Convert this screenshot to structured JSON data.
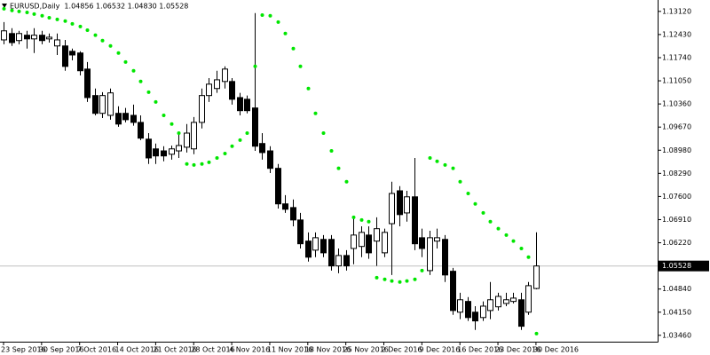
{
  "chart_data": {
    "type": "candlestick",
    "title": "EURUSD,Daily  1.04856 1.06532 1.04830 1.05528",
    "categories": [
      "23 Sep 2016",
      null,
      null,
      null,
      null,
      "30 Sep 2016",
      null,
      null,
      null,
      null,
      "7 Oct 2016",
      null,
      null,
      null,
      null,
      "14 Oct 2016",
      null,
      null,
      null,
      null,
      "21 Oct 2016",
      null,
      null,
      null,
      null,
      "28 Oct 2016",
      null,
      null,
      null,
      null,
      "4 Nov 2016",
      null,
      null,
      null,
      null,
      "11 Nov 2016",
      null,
      null,
      null,
      null,
      "18 Nov 2016",
      null,
      null,
      null,
      null,
      "25 Nov 2016",
      null,
      null,
      null,
      null,
      "2 Dec 2016",
      null,
      null,
      null,
      null,
      "9 Dec 2016",
      null,
      null,
      null,
      null,
      "16 Dec 2016",
      null,
      null,
      null,
      null,
      "23 Dec 2016",
      null,
      null,
      null,
      null,
      "30 Dec 2016"
    ],
    "open": [
      1.1227,
      1.1246,
      1.1225,
      1.1241,
      1.123,
      1.1241,
      1.123,
      1.1209,
      1.1209,
      1.1193,
      1.1188,
      1.114,
      1.1061,
      1.1008,
      1.1002,
      1.1008,
      1.1008,
      1.1002,
      1.0981,
      1.0931,
      1.0902,
      1.0896,
      1.0886,
      1.0896,
      1.0907,
      1.0902,
      1.0981,
      1.1061,
      1.1082,
      1.1103,
      1.1103,
      1.1055,
      1.105,
      1.1024,
      1.0918,
      1.0896,
      1.0844,
      1.0738,
      1.0727,
      1.069,
      1.0627,
      1.06,
      1.0632,
      1.0632,
      1.0553,
      1.0584,
      1.0605,
      1.0611,
      1.0645,
      1.0627,
      1.0592,
      1.0679,
      1.0777,
      1.0711,
      1.0759,
      1.0637,
      1.0539,
      1.0627,
      1.0632,
      1.0537,
      1.0415,
      1.0447,
      1.0415,
      1.0399,
      1.042,
      1.0431,
      1.0441,
      1.0447,
      1.0452,
      1.0415,
      1.04856
    ],
    "high": [
      1.128,
      1.1262,
      1.1254,
      1.1254,
      1.1262,
      1.1254,
      1.1246,
      1.1246,
      1.1227,
      1.1201,
      1.1193,
      1.1161,
      1.1082,
      1.1071,
      1.1082,
      1.1029,
      1.1024,
      1.1034,
      1.1002,
      1.0949,
      1.0918,
      1.091,
      1.0912,
      1.0949,
      1.0976,
      1.0997,
      1.1082,
      1.1113,
      1.1135,
      1.1148,
      1.1113,
      1.1069,
      1.1061,
      1.1307,
      1.0949,
      1.091,
      1.0857,
      1.0764,
      1.0751,
      1.0711,
      1.0653,
      1.0653,
      1.0645,
      1.0645,
      1.0605,
      1.06,
      1.0698,
      1.0671,
      1.0671,
      1.0698,
      1.0664,
      1.0804,
      1.0791,
      1.0777,
      1.0875,
      1.0664,
      1.0658,
      1.0664,
      1.0645,
      1.0547,
      1.0473,
      1.046,
      1.0433,
      1.0447,
      1.0505,
      1.0473,
      1.0473,
      1.0473,
      1.0473,
      1.0505,
      1.06532
    ],
    "low": [
      1.1214,
      1.1209,
      1.1214,
      1.1201,
      1.1188,
      1.1214,
      1.1219,
      1.1182,
      1.1135,
      1.1166,
      1.1121,
      1.1042,
      1.1002,
      1.0994,
      1.0989,
      1.0968,
      1.0981,
      1.0971,
      1.0928,
      1.0857,
      1.0857,
      1.0865,
      1.087,
      1.0875,
      1.0891,
      1.0886,
      1.0963,
      1.1042,
      1.1069,
      1.1082,
      1.1034,
      1.1002,
      1.1008,
      1.0896,
      1.087,
      1.083,
      1.0724,
      1.0711,
      1.0671,
      1.0605,
      1.0566,
      1.0579,
      1.0579,
      1.0539,
      1.0531,
      1.0539,
      1.0558,
      1.0579,
      1.0574,
      1.0553,
      1.0579,
      1.0526,
      1.0671,
      1.0685,
      1.06,
      1.0579,
      1.0526,
      1.0605,
      1.0505,
      1.0407,
      1.0394,
      1.0389,
      1.0362,
      1.0389,
      1.0394,
      1.042,
      1.0433,
      1.0441,
      1.0362,
      1.0407,
      1.0483
    ],
    "close": [
      1.1254,
      1.1219,
      1.1246,
      1.123,
      1.1241,
      1.1225,
      1.1235,
      1.1227,
      1.1148,
      1.1182,
      1.1135,
      1.1055,
      1.1008,
      1.1061,
      1.1069,
      1.0976,
      1.0989,
      1.0981,
      1.0934,
      1.0875,
      1.0881,
      1.0881,
      1.0902,
      1.0912,
      1.0949,
      1.0981,
      1.1061,
      1.1095,
      1.1108,
      1.114,
      1.105,
      1.1016,
      1.1016,
      1.091,
      1.0891,
      1.0844,
      1.0738,
      1.0722,
      1.069,
      1.0619,
      1.0579,
      1.0637,
      1.0592,
      1.0553,
      1.0584,
      1.0553,
      1.0645,
      1.0653,
      1.0592,
      1.0664,
      1.0653,
      1.0769,
      1.0706,
      1.0759,
      1.0619,
      1.0605,
      1.0637,
      1.0637,
      1.0526,
      1.042,
      1.0452,
      1.0399,
      1.0389,
      1.0433,
      1.0452,
      1.0462,
      1.0452,
      1.0457,
      1.0373,
      1.0494,
      1.05528
    ],
    "sar": [
      1.132,
      1.1315,
      1.1312,
      1.1309,
      1.1304,
      1.1299,
      1.1293,
      1.1288,
      1.1283,
      1.1275,
      1.1267,
      1.1256,
      1.1241,
      1.1225,
      1.1209,
      1.1188,
      1.1161,
      1.1135,
      1.1103,
      1.1071,
      1.1042,
      1.1002,
      1.0976,
      1.0949,
      1.0857,
      1.0854,
      1.0857,
      1.0862,
      1.0875,
      1.0888,
      1.091,
      1.0928,
      1.0949,
      1.1148,
      1.1301,
      1.1299,
      1.128,
      1.1246,
      1.1201,
      1.1148,
      1.1082,
      1.1008,
      1.0949,
      1.0896,
      1.0844,
      1.0804,
      1.0698,
      1.069,
      1.0685,
      1.0518,
      1.0513,
      1.0508,
      1.0505,
      1.0508,
      1.0513,
      1.0539,
      1.0875,
      1.0865,
      1.0854,
      1.0844,
      1.0804,
      1.0769,
      1.0738,
      1.0711,
      1.0685,
      1.0664,
      1.0645,
      1.0627,
      1.0605,
      1.0579,
      1.0351
    ],
    "up_color": "#ffffff",
    "down_color": "#000000",
    "sar_color": "#00e600",
    "ylim": [
      1.0327,
      1.1346
    ],
    "yticks": [
      {
        "value": 1.1312,
        "label": "1.13120"
      },
      {
        "value": 1.1243,
        "label": "1.12430"
      },
      {
        "value": 1.1174,
        "label": "1.11740"
      },
      {
        "value": 1.1105,
        "label": "1.11050"
      },
      {
        "value": 1.1036,
        "label": "1.10360"
      },
      {
        "value": 1.0967,
        "label": "1.09670"
      },
      {
        "value": 1.0898,
        "label": "1.08980"
      },
      {
        "value": 1.0829,
        "label": "1.08290"
      },
      {
        "value": 1.076,
        "label": "1.07600"
      },
      {
        "value": 1.0691,
        "label": "1.06910"
      },
      {
        "value": 1.0622,
        "label": "1.06220"
      },
      {
        "value": 1.0484,
        "label": "1.04840"
      },
      {
        "value": 1.0415,
        "label": "1.04150"
      },
      {
        "value": 1.0346,
        "label": "1.03460"
      }
    ],
    "price_line": {
      "value": 1.05528,
      "label": "1.05528"
    }
  }
}
